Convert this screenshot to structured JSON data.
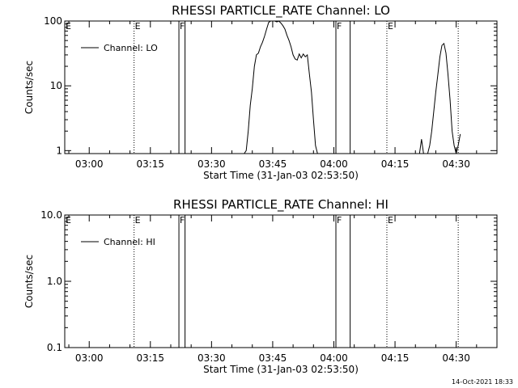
{
  "footer": {
    "timestamp": "14-Oct-2021 18:33"
  },
  "chart_data": [
    {
      "type": "line",
      "title": "RHESSI PARTICLE_RATE Channel: LO",
      "xlabel": "Start Time (31-Jan-03 02:53:50)",
      "ylabel": "Counts/sec",
      "yscale": "log",
      "ylim": [
        0.9,
        100
      ],
      "xlim_minutes": [
        -6,
        100
      ],
      "x_ticks": [
        {
          "t": 0,
          "label": "03:00"
        },
        {
          "t": 15,
          "label": "03:15"
        },
        {
          "t": 30,
          "label": "03:30"
        },
        {
          "t": 45,
          "label": "03:45"
        },
        {
          "t": 60,
          "label": "04:00"
        },
        {
          "t": 75,
          "label": "04:15"
        },
        {
          "t": 90,
          "label": "04:30"
        }
      ],
      "y_ticks": [
        {
          "v": 1,
          "label": "1"
        },
        {
          "v": 10,
          "label": "10"
        },
        {
          "v": 100,
          "label": "100"
        }
      ],
      "legend": {
        "label": "Channel: LO",
        "placement": "top-left"
      },
      "flag_lines": [
        {
          "t": 11,
          "style": "dotted",
          "label": "E"
        },
        {
          "t": 22,
          "style": "solid",
          "label": "F"
        },
        {
          "t": 23.5,
          "style": "solid",
          "label": ""
        },
        {
          "t": 60.5,
          "style": "solid",
          "label": "F"
        },
        {
          "t": 64,
          "style": "solid",
          "label": ""
        },
        {
          "t": 73,
          "style": "dotted",
          "label": "E"
        },
        {
          "t": 90.5,
          "style": "dotted",
          "label": ""
        }
      ],
      "edge_labels": [
        {
          "label": "E",
          "side": "left"
        }
      ],
      "series": [
        {
          "name": "Channel: LO",
          "segments": [
            [
              [
                38,
                0.8
              ],
              [
                38.5,
                1.0
              ],
              [
                39,
                2
              ],
              [
                39.5,
                5
              ],
              [
                40,
                9
              ],
              [
                40.5,
                20
              ],
              [
                41,
                30
              ],
              [
                41.5,
                32
              ],
              [
                42,
                40
              ],
              [
                42.5,
                47
              ],
              [
                43,
                58
              ],
              [
                43.5,
                75
              ],
              [
                44,
                95
              ],
              [
                44.5,
                105
              ],
              [
                45,
                105
              ],
              [
                45.5,
                100
              ],
              [
                46,
                97
              ],
              [
                46.5,
                100
              ],
              [
                47,
                93
              ],
              [
                47.5,
                85
              ],
              [
                48,
                75
              ],
              [
                48.5,
                60
              ],
              [
                49,
                50
              ],
              [
                49.5,
                40
              ],
              [
                50,
                30
              ],
              [
                50.5,
                26
              ],
              [
                51,
                25
              ],
              [
                51.5,
                31
              ],
              [
                52,
                27
              ],
              [
                52.5,
                31
              ],
              [
                53,
                28
              ],
              [
                53.5,
                30
              ],
              [
                54,
                15
              ],
              [
                54.5,
                8
              ],
              [
                55,
                3
              ],
              [
                55.5,
                1.2
              ],
              [
                56,
                0.8
              ]
            ],
            [
              [
                81,
                0.8
              ],
              [
                81.5,
                1.5
              ],
              [
                82,
                0.8
              ]
            ],
            [
              [
                83,
                0.8
              ],
              [
                83.5,
                1.2
              ],
              [
                84,
                2
              ],
              [
                84.5,
                4
              ],
              [
                85,
                8
              ],
              [
                85.5,
                15
              ],
              [
                86,
                28
              ],
              [
                86.5,
                42
              ],
              [
                87,
                45
              ],
              [
                87.5,
                32
              ],
              [
                88,
                15
              ],
              [
                88.5,
                6
              ],
              [
                89,
                2
              ],
              [
                89.5,
                1.2
              ],
              [
                90,
                0.8
              ],
              [
                90.5,
                1.2
              ],
              [
                91,
                1.8
              ]
            ]
          ]
        }
      ]
    },
    {
      "type": "line",
      "title": "RHESSI PARTICLE_RATE Channel: HI",
      "xlabel": "Start Time (31-Jan-03 02:53:50)",
      "ylabel": "Counts/sec",
      "yscale": "log",
      "ylim": [
        0.1,
        10
      ],
      "xlim_minutes": [
        -6,
        100
      ],
      "x_ticks": [
        {
          "t": 0,
          "label": "03:00"
        },
        {
          "t": 15,
          "label": "03:15"
        },
        {
          "t": 30,
          "label": "03:30"
        },
        {
          "t": 45,
          "label": "03:45"
        },
        {
          "t": 60,
          "label": "04:00"
        },
        {
          "t": 75,
          "label": "04:15"
        },
        {
          "t": 90,
          "label": "04:30"
        }
      ],
      "y_ticks": [
        {
          "v": 0.1,
          "label": "0.1"
        },
        {
          "v": 1,
          "label": "1.0"
        },
        {
          "v": 10,
          "label": "10.0"
        }
      ],
      "legend": {
        "label": "Channel: HI",
        "placement": "top-left"
      },
      "flag_lines": [
        {
          "t": 11,
          "style": "dotted",
          "label": "E"
        },
        {
          "t": 22,
          "style": "solid",
          "label": "F"
        },
        {
          "t": 23.5,
          "style": "solid",
          "label": ""
        },
        {
          "t": 60.5,
          "style": "solid",
          "label": "F"
        },
        {
          "t": 64,
          "style": "solid",
          "label": ""
        },
        {
          "t": 73,
          "style": "dotted",
          "label": "E"
        },
        {
          "t": 90.5,
          "style": "dotted",
          "label": ""
        }
      ],
      "edge_labels": [
        {
          "label": "E",
          "side": "left"
        }
      ],
      "series": [
        {
          "name": "Channel: HI",
          "segments": []
        }
      ]
    }
  ]
}
